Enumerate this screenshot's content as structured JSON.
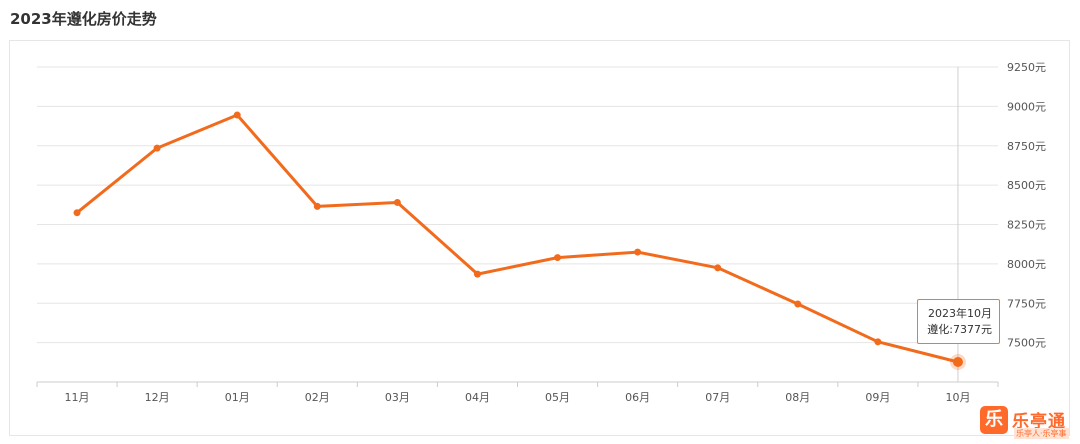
{
  "page": {
    "title": "2023年遵化房价走势"
  },
  "chart_data": {
    "type": "line",
    "title": "2023年遵化房价走势",
    "categories": [
      "11月",
      "12月",
      "01月",
      "02月",
      "03月",
      "04月",
      "05月",
      "06月",
      "07月",
      "08月",
      "09月",
      "10月"
    ],
    "series": [
      {
        "name": "遵化",
        "values": [
          8325,
          8735,
          8945,
          8365,
          8390,
          7935,
          8040,
          8075,
          7975,
          7745,
          7505,
          7377
        ]
      }
    ],
    "y_ticks": [
      "7500元",
      "7750元",
      "8000元",
      "8250元",
      "8500元",
      "8750元",
      "9000元",
      "9250元"
    ],
    "ylim": [
      7250,
      9250
    ],
    "y_axis_side": "right",
    "grid": true,
    "line_color": "#f26b1d",
    "highlight_index": 11
  },
  "tooltip": {
    "period": "2023年10月",
    "value_text": "遵化:7377元"
  },
  "logo": {
    "badge": "乐",
    "name": "乐亭通",
    "slogan": "乐亭人·乐亭事"
  }
}
